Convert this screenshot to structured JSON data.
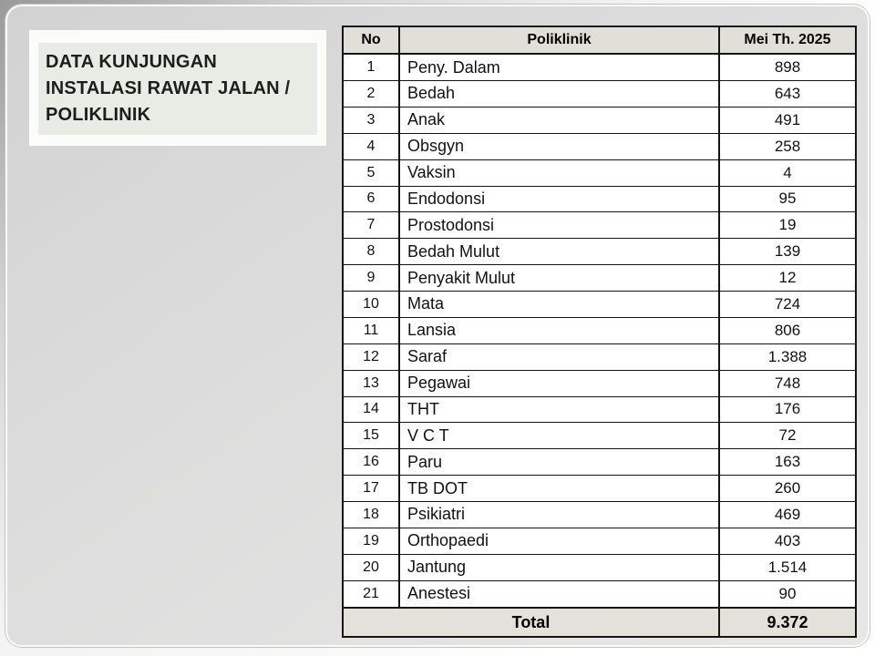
{
  "slide": {
    "title": "DATA KUNJUNGAN INSTALASI RAWAT JALAN / POLIKLINIK",
    "title_lines": [
      "DATA KUNJUNGAN",
      "INSTALASI RAWAT JALAN /",
      "POLIKLINIK"
    ]
  },
  "table": {
    "columns": [
      "No",
      "Poliklinik",
      "Mei Th. 2025"
    ],
    "rows": [
      {
        "no": "1",
        "poliklinik": "Peny. Dalam",
        "value": "898"
      },
      {
        "no": "2",
        "poliklinik": "Bedah",
        "value": "643"
      },
      {
        "no": "3",
        "poliklinik": "Anak",
        "value": "491"
      },
      {
        "no": "4",
        "poliklinik": "Obsgyn",
        "value": "258"
      },
      {
        "no": "5",
        "poliklinik": "Vaksin",
        "value": "4"
      },
      {
        "no": "6",
        "poliklinik": "Endodonsi",
        "value": "95"
      },
      {
        "no": "7",
        "poliklinik": "Prostodonsi",
        "value": "19"
      },
      {
        "no": "8",
        "poliklinik": "Bedah Mulut",
        "value": "139"
      },
      {
        "no": "9",
        "poliklinik": "Penyakit Mulut",
        "value": "12"
      },
      {
        "no": "10",
        "poliklinik": "Mata",
        "value": "724"
      },
      {
        "no": "11",
        "poliklinik": "Lansia",
        "value": "806"
      },
      {
        "no": "12",
        "poliklinik": "Saraf",
        "value": "1.388"
      },
      {
        "no": "13",
        "poliklinik": "Pegawai",
        "value": "748"
      },
      {
        "no": "14",
        "poliklinik": "THT",
        "value": "176"
      },
      {
        "no": "15",
        "poliklinik": "V C T",
        "value": "72"
      },
      {
        "no": "16",
        "poliklinik": "Paru",
        "value": "163"
      },
      {
        "no": "17",
        "poliklinik": "TB DOT",
        "value": "260"
      },
      {
        "no": "18",
        "poliklinik": "Psikiatri",
        "value": "469"
      },
      {
        "no": "19",
        "poliklinik": "Orthopaedi",
        "value": "403"
      },
      {
        "no": "20",
        "poliklinik": "Jantung",
        "value": "1.514"
      },
      {
        "no": "21",
        "poliklinik": "Anestesi",
        "value": "90"
      }
    ],
    "total_label": "Total",
    "total_value": "9.372"
  },
  "colors": {
    "header_row_bg": "#e0e0d8",
    "total_row_bg": "#e2e2da",
    "table_border": "#141414",
    "title_frame_bg": "#fcfcfb",
    "title_box_bg": "#e9ece5",
    "title_text": "#1d1d1d",
    "slide_bg": "#dcdcdc"
  },
  "chart_data": {
    "type": "table",
    "title": "DATA KUNJUNGAN INSTALASI RAWAT JALAN / POLIKLINIK",
    "columns": [
      "No",
      "Poliklinik",
      "Mei Th. 2025"
    ],
    "rows": [
      [
        1,
        "Peny. Dalam",
        898
      ],
      [
        2,
        "Bedah",
        643
      ],
      [
        3,
        "Anak",
        491
      ],
      [
        4,
        "Obsgyn",
        258
      ],
      [
        5,
        "Vaksin",
        4
      ],
      [
        6,
        "Endodonsi",
        95
      ],
      [
        7,
        "Prostodonsi",
        19
      ],
      [
        8,
        "Bedah Mulut",
        139
      ],
      [
        9,
        "Penyakit Mulut",
        12
      ],
      [
        10,
        "Mata",
        724
      ],
      [
        11,
        "Lansia",
        806
      ],
      [
        12,
        "Saraf",
        1388
      ],
      [
        13,
        "Pegawai",
        748
      ],
      [
        14,
        "THT",
        176
      ],
      [
        15,
        "V C T",
        72
      ],
      [
        16,
        "Paru",
        163
      ],
      [
        17,
        "TB DOT",
        260
      ],
      [
        18,
        "Psikiatri",
        469
      ],
      [
        19,
        "Orthopaedi",
        403
      ],
      [
        20,
        "Jantung",
        1514
      ],
      [
        21,
        "Anestesi",
        90
      ]
    ],
    "total": 9372
  }
}
